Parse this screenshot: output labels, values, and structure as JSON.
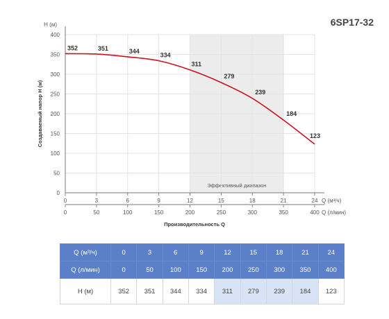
{
  "chart_data": {
    "type": "line",
    "title": "6SP17-32",
    "ylabel": "Создаваемый напор H (м)",
    "yunit": "H (м)",
    "xlabel": "Производительность Q",
    "x_axis_labels": [
      "Q (м³/ч)",
      "Q (л/мин)"
    ],
    "ylim": [
      0,
      400
    ],
    "xlim": [
      0,
      24
    ],
    "yticks": [
      0,
      50,
      100,
      150,
      200,
      250,
      300,
      350,
      400
    ],
    "xticks_m3h": [
      0,
      3,
      6,
      9,
      12,
      15,
      18,
      21,
      24
    ],
    "xticks_lmin": [
      0,
      50,
      100,
      150,
      200,
      250,
      300,
      350,
      400
    ],
    "grid": true,
    "effective_range": {
      "label": "Эффективный диапазон",
      "from": 12,
      "to": 21
    },
    "series": [
      {
        "x": [
          0,
          3,
          6,
          9,
          12,
          15,
          18,
          21,
          24
        ],
        "values": [
          352,
          351,
          344,
          334,
          311,
          279,
          239,
          184,
          123
        ],
        "color": "#d0101e"
      }
    ]
  },
  "table": {
    "rows": [
      {
        "label": "Q (м³/ч)",
        "values": [
          "0",
          "3",
          "6",
          "9",
          "12",
          "15",
          "18",
          "21",
          "24"
        ]
      },
      {
        "label": "Q (л/мин)",
        "values": [
          "0",
          "50",
          "100",
          "150",
          "200",
          "250",
          "300",
          "350",
          "400"
        ]
      },
      {
        "label": "H (м)",
        "values": [
          "352",
          "351",
          "344",
          "334",
          "311",
          "279",
          "239",
          "184",
          "123"
        ]
      }
    ],
    "highlight_columns": [
      4,
      5,
      6,
      7
    ]
  },
  "colors": {
    "curve": "#d0101e",
    "band": "#ececec",
    "grid": "#e3e3e3",
    "table_header": "#5b80c9",
    "table_highlight": "#d8e4f6"
  }
}
